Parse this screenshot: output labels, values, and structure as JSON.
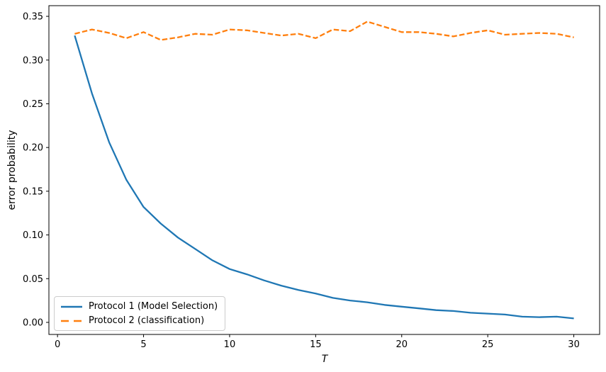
{
  "chart_data": {
    "type": "line",
    "xlabel": "T",
    "ylabel": "error probability",
    "x": [
      1,
      2,
      3,
      4,
      5,
      6,
      7,
      8,
      9,
      10,
      11,
      12,
      13,
      14,
      15,
      16,
      17,
      18,
      19,
      20,
      21,
      22,
      23,
      24,
      25,
      26,
      27,
      28,
      29,
      30
    ],
    "series": [
      {
        "name": "Protocol 1 (Model Selection)",
        "color": "#1f77b4",
        "style": "solid",
        "values": [
          0.328,
          0.262,
          0.206,
          0.163,
          0.132,
          0.113,
          0.097,
          0.084,
          0.071,
          0.061,
          0.055,
          0.048,
          0.042,
          0.037,
          0.033,
          0.028,
          0.025,
          0.023,
          0.02,
          0.018,
          0.016,
          0.014,
          0.013,
          0.011,
          0.01,
          0.009,
          0.0065,
          0.006,
          0.0065,
          0.0045
        ]
      },
      {
        "name": "Protocol 2 (classification)",
        "color": "#ff7f0e",
        "style": "dashed",
        "values": [
          0.33,
          0.335,
          0.331,
          0.325,
          0.332,
          0.323,
          0.326,
          0.33,
          0.329,
          0.335,
          0.334,
          0.331,
          0.328,
          0.33,
          0.325,
          0.335,
          0.333,
          0.344,
          0.338,
          0.332,
          0.332,
          0.33,
          0.327,
          0.331,
          0.334,
          0.329,
          0.33,
          0.331,
          0.33,
          0.326
        ]
      }
    ],
    "xlim": [
      -0.5,
      31.5
    ],
    "ylim": [
      -0.0138,
      0.3622
    ],
    "xticks": [
      0,
      5,
      10,
      15,
      20,
      25,
      30
    ],
    "xtick_labels": [
      "0",
      "5",
      "10",
      "15",
      "20",
      "25",
      "30"
    ],
    "yticks": [
      0.0,
      0.05,
      0.1,
      0.15,
      0.2,
      0.25,
      0.3,
      0.35
    ],
    "ytick_labels": [
      "0.00",
      "0.05",
      "0.10",
      "0.15",
      "0.20",
      "0.25",
      "0.30",
      "0.35"
    ],
    "grid": false,
    "legend_position": "lower left",
    "axis_color": "#000000",
    "background_color": "#ffffff"
  }
}
